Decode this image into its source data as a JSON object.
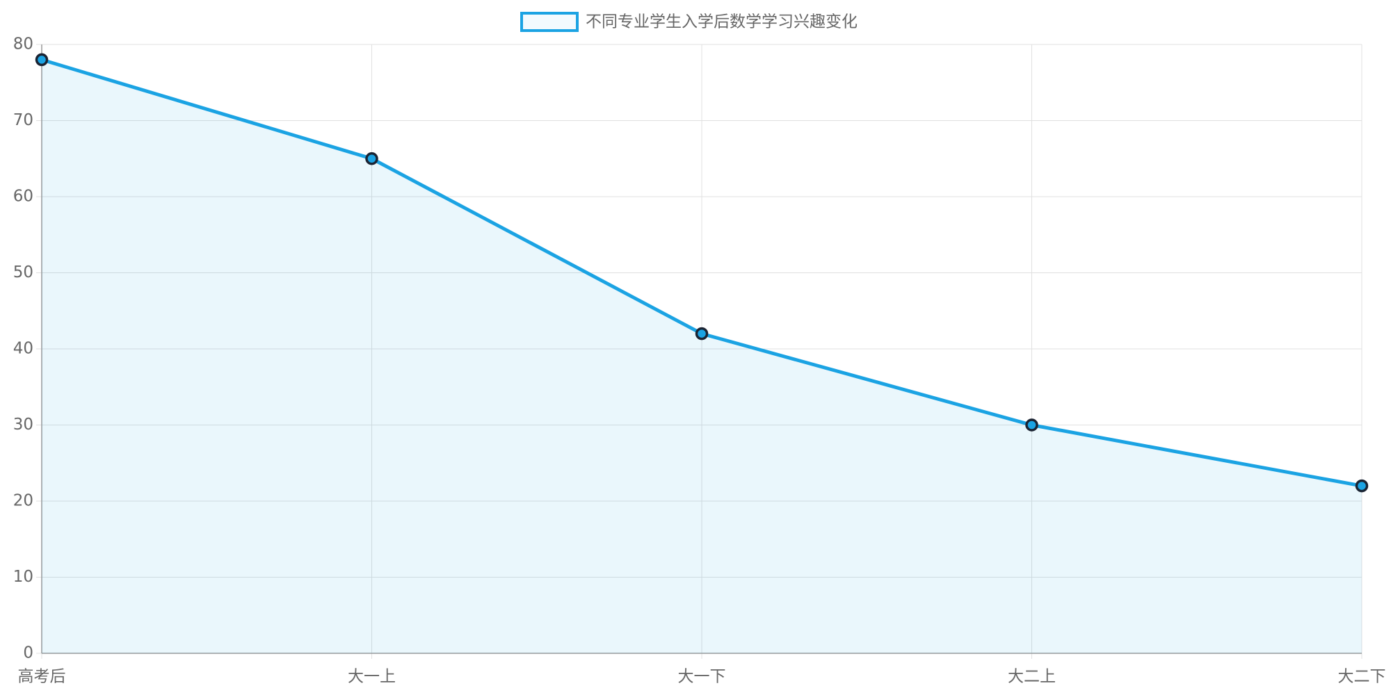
{
  "chart_data": {
    "type": "line",
    "categories": [
      "高考后",
      "大一上",
      "大一下",
      "大二上",
      "大二下"
    ],
    "series": [
      {
        "name": "不同专业学生入学后数学学习兴趣变化",
        "color": "#1ba3e3",
        "values": [
          78,
          65,
          42,
          30,
          22
        ]
      }
    ],
    "ylim": [
      0,
      80
    ],
    "yticks": [
      0,
      10,
      20,
      30,
      40,
      50,
      60,
      70,
      80
    ],
    "grid": true,
    "fill": true,
    "legend": "top"
  }
}
